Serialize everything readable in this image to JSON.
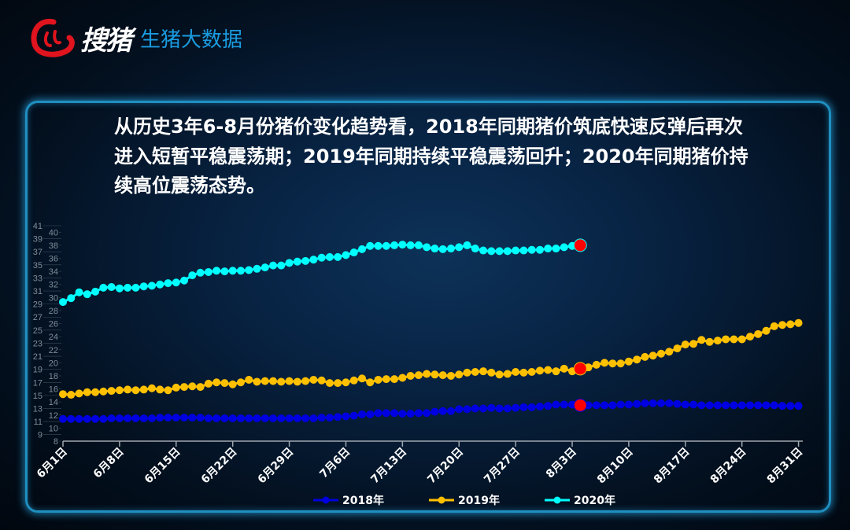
{
  "header": {
    "logo_text": "搜猪",
    "subtitle": "生猪大数据"
  },
  "headline": "从历史3年6-8月份猪价变化趋势看，2018年同期猪价筑底快速反弹后再次进入短暂平稳震荡期；2019年同期持续平稳震荡回升；2020年同期猪价持续高位震荡态势。",
  "chart_data": {
    "type": "line",
    "title": "",
    "xlabel": "",
    "ylabel": "",
    "ylim": [
      8,
      41
    ],
    "yticks": [
      8,
      9,
      10,
      11,
      12,
      13,
      14,
      15,
      16,
      17,
      18,
      19,
      20,
      21,
      22,
      23,
      24,
      25,
      26,
      27,
      28,
      29,
      30,
      31,
      32,
      33,
      34,
      35,
      36,
      37,
      38,
      39,
      40,
      41
    ],
    "xtick_labels": [
      "6月1日",
      "6月8日",
      "6月15日",
      "6月22日",
      "6月29日",
      "7月6日",
      "7月13日",
      "7月20日",
      "7月27日",
      "8月3日",
      "8月10日",
      "8月17日",
      "8月24日",
      "8月31日"
    ],
    "x_start": "6月1日",
    "x_step": "1 day",
    "legend_position": "bottom",
    "highlight_point_index": 64,
    "highlight_color": "#ff0000",
    "series": [
      {
        "name": "2018年",
        "color": "#0000e0",
        "values": [
          11.4,
          11.4,
          11.4,
          11.4,
          11.4,
          11.4,
          11.5,
          11.5,
          11.5,
          11.5,
          11.5,
          11.5,
          11.6,
          11.6,
          11.6,
          11.6,
          11.6,
          11.6,
          11.5,
          11.5,
          11.5,
          11.5,
          11.5,
          11.5,
          11.5,
          11.5,
          11.5,
          11.5,
          11.5,
          11.5,
          11.5,
          11.5,
          11.6,
          11.6,
          11.7,
          11.8,
          11.9,
          12.1,
          12.1,
          12.3,
          12.3,
          12.3,
          12.2,
          12.2,
          12.3,
          12.3,
          12.5,
          12.6,
          12.6,
          12.9,
          12.9,
          13.0,
          13.0,
          13.1,
          13.0,
          13.0,
          13.1,
          13.2,
          13.2,
          13.3,
          13.4,
          13.6,
          13.6,
          13.6,
          13.5,
          13.5,
          13.5,
          13.5,
          13.5,
          13.6,
          13.6,
          13.7,
          13.8,
          13.8,
          13.8,
          13.8,
          13.7,
          13.6,
          13.6,
          13.5,
          13.5,
          13.5,
          13.5,
          13.5,
          13.5,
          13.5,
          13.5,
          13.5,
          13.5,
          13.4,
          13.4,
          13.4
        ]
      },
      {
        "name": "2019年",
        "color": "#ffc000",
        "values": [
          15.2,
          15.1,
          15.3,
          15.5,
          15.5,
          15.6,
          15.7,
          15.8,
          15.9,
          15.8,
          15.9,
          16.1,
          15.9,
          15.8,
          16.2,
          16.3,
          16.4,
          16.3,
          16.8,
          17.0,
          16.9,
          16.7,
          17.0,
          17.4,
          17.1,
          17.2,
          17.2,
          17.1,
          17.2,
          17.1,
          17.2,
          17.4,
          17.3,
          16.9,
          16.9,
          17.0,
          17.3,
          17.6,
          17.0,
          17.4,
          17.5,
          17.5,
          17.7,
          18.0,
          18.1,
          18.3,
          18.2,
          18.1,
          18.0,
          18.2,
          18.5,
          18.6,
          18.7,
          18.5,
          18.2,
          18.3,
          18.6,
          18.5,
          18.6,
          18.8,
          18.9,
          18.7,
          19.1,
          18.7,
          19.1,
          19.3,
          19.7,
          20.0,
          19.9,
          19.9,
          20.2,
          20.5,
          20.9,
          21.1,
          21.4,
          21.7,
          22.2,
          22.8,
          22.9,
          23.5,
          23.2,
          23.4,
          23.6,
          23.6,
          23.6,
          24.0,
          24.4,
          24.9,
          25.6,
          25.8,
          25.9,
          26.1
        ]
      },
      {
        "name": "2020年",
        "color": "#00ffff",
        "values": [
          29.3,
          29.9,
          30.8,
          30.5,
          30.9,
          31.5,
          31.6,
          31.4,
          31.5,
          31.5,
          31.7,
          31.8,
          32.0,
          32.2,
          32.3,
          32.6,
          33.4,
          33.8,
          33.9,
          34.1,
          34.0,
          34.1,
          34.1,
          34.2,
          34.4,
          34.6,
          34.9,
          34.9,
          35.3,
          35.5,
          35.6,
          35.8,
          36.1,
          36.2,
          36.2,
          36.5,
          36.9,
          37.4,
          37.9,
          37.9,
          37.9,
          38.0,
          38.1,
          38.0,
          38.0,
          37.7,
          37.5,
          37.4,
          37.5,
          37.7,
          38.0,
          37.5,
          37.2,
          37.1,
          37.1,
          37.1,
          37.2,
          37.2,
          37.3,
          37.3,
          37.5,
          37.5,
          37.7,
          37.9,
          38.0
        ]
      }
    ]
  }
}
